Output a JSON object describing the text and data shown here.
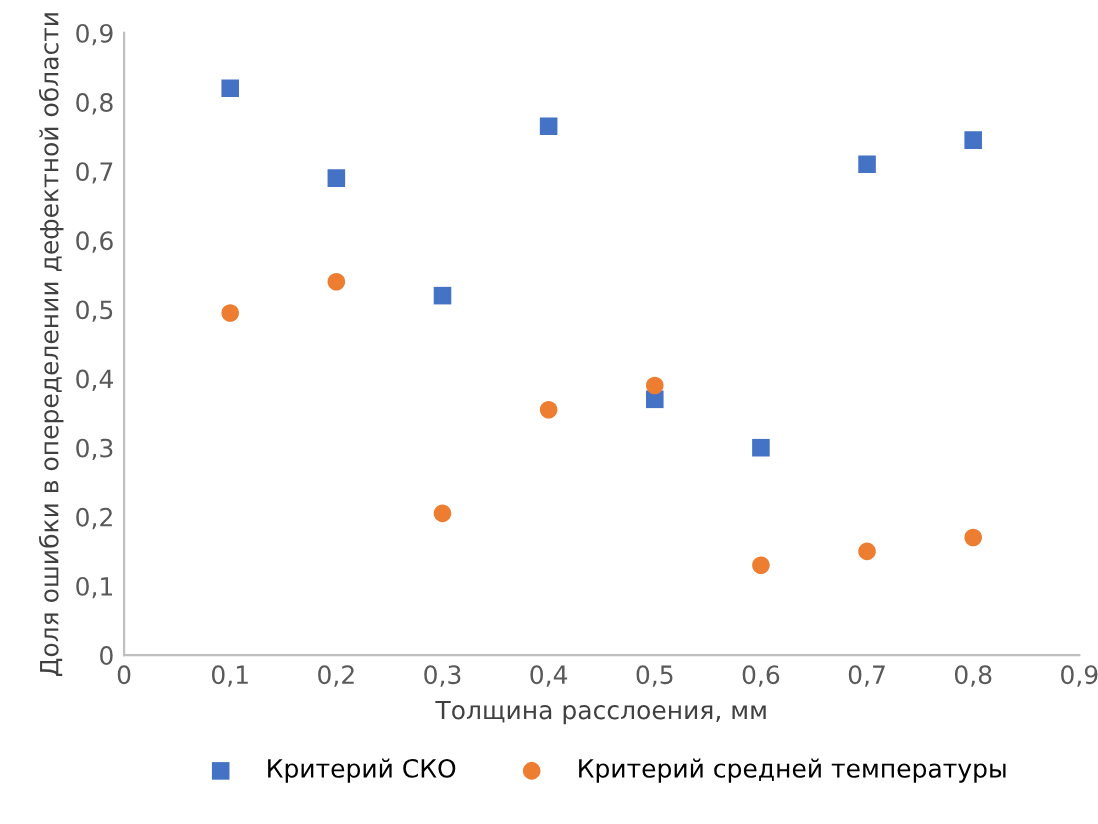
{
  "chart_data": {
    "type": "scatter",
    "xlabel": "Толщина расслоения, мм",
    "ylabel": "Доля ошибки в опеределении дефектной области",
    "x": [
      0.1,
      0.2,
      0.3,
      0.4,
      0.5,
      0.6,
      0.7,
      0.8
    ],
    "series": [
      {
        "name": "Критерий СКО",
        "color": "#4472c4",
        "marker": "square",
        "values": [
          0.82,
          0.69,
          0.52,
          0.765,
          0.37,
          0.3,
          0.71,
          0.745
        ]
      },
      {
        "name": "Критерий средней температуры",
        "color": "#ed7d31",
        "marker": "circle",
        "values": [
          0.495,
          0.54,
          0.205,
          0.355,
          0.39,
          0.13,
          0.15,
          0.17
        ]
      }
    ],
    "xlim": [
      0,
      0.9
    ],
    "ylim": [
      0,
      0.9
    ],
    "xticks": [
      {
        "value": 0,
        "label": "0"
      },
      {
        "value": 0.1,
        "label": "0,1"
      },
      {
        "value": 0.2,
        "label": "0,2"
      },
      {
        "value": 0.3,
        "label": "0,3"
      },
      {
        "value": 0.4,
        "label": "0,4"
      },
      {
        "value": 0.5,
        "label": "0,5"
      },
      {
        "value": 0.6,
        "label": "0,6"
      },
      {
        "value": 0.7,
        "label": "0,7"
      },
      {
        "value": 0.8,
        "label": "0,8"
      },
      {
        "value": 0.9,
        "label": "0,9"
      }
    ],
    "yticks": [
      {
        "value": 0,
        "label": "0"
      },
      {
        "value": 0.1,
        "label": "0,1"
      },
      {
        "value": 0.2,
        "label": "0,2"
      },
      {
        "value": 0.3,
        "label": "0,3"
      },
      {
        "value": 0.4,
        "label": "0,4"
      },
      {
        "value": 0.5,
        "label": "0,5"
      },
      {
        "value": 0.6,
        "label": "0,6"
      },
      {
        "value": 0.7,
        "label": "0,7"
      },
      {
        "value": 0.8,
        "label": "0,8"
      },
      {
        "value": 0.9,
        "label": "0,9"
      }
    ],
    "grid": false,
    "legend": "bottom"
  }
}
